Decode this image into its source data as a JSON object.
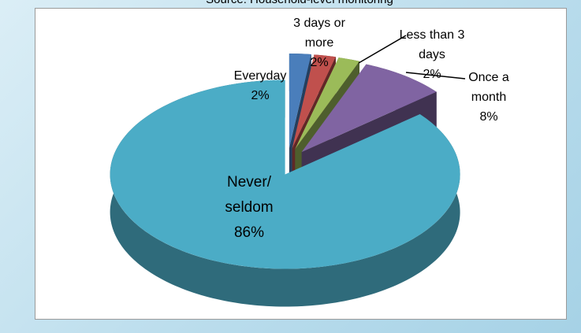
{
  "chart_data": {
    "type": "pie",
    "subtitle": "Source: Household-level monitoring",
    "categories": [
      "Everyday",
      "3 days or more",
      "Less than 3 days",
      "Once a month",
      "Never/ seldom"
    ],
    "values": [
      2,
      2,
      2,
      8,
      86
    ],
    "value_labels": [
      "2%",
      "2%",
      "2%",
      "8%",
      "86%"
    ],
    "colors": [
      "#4a7ebb",
      "#c0504d",
      "#9bbb59",
      "#8064a2",
      "#4bacc6"
    ]
  }
}
